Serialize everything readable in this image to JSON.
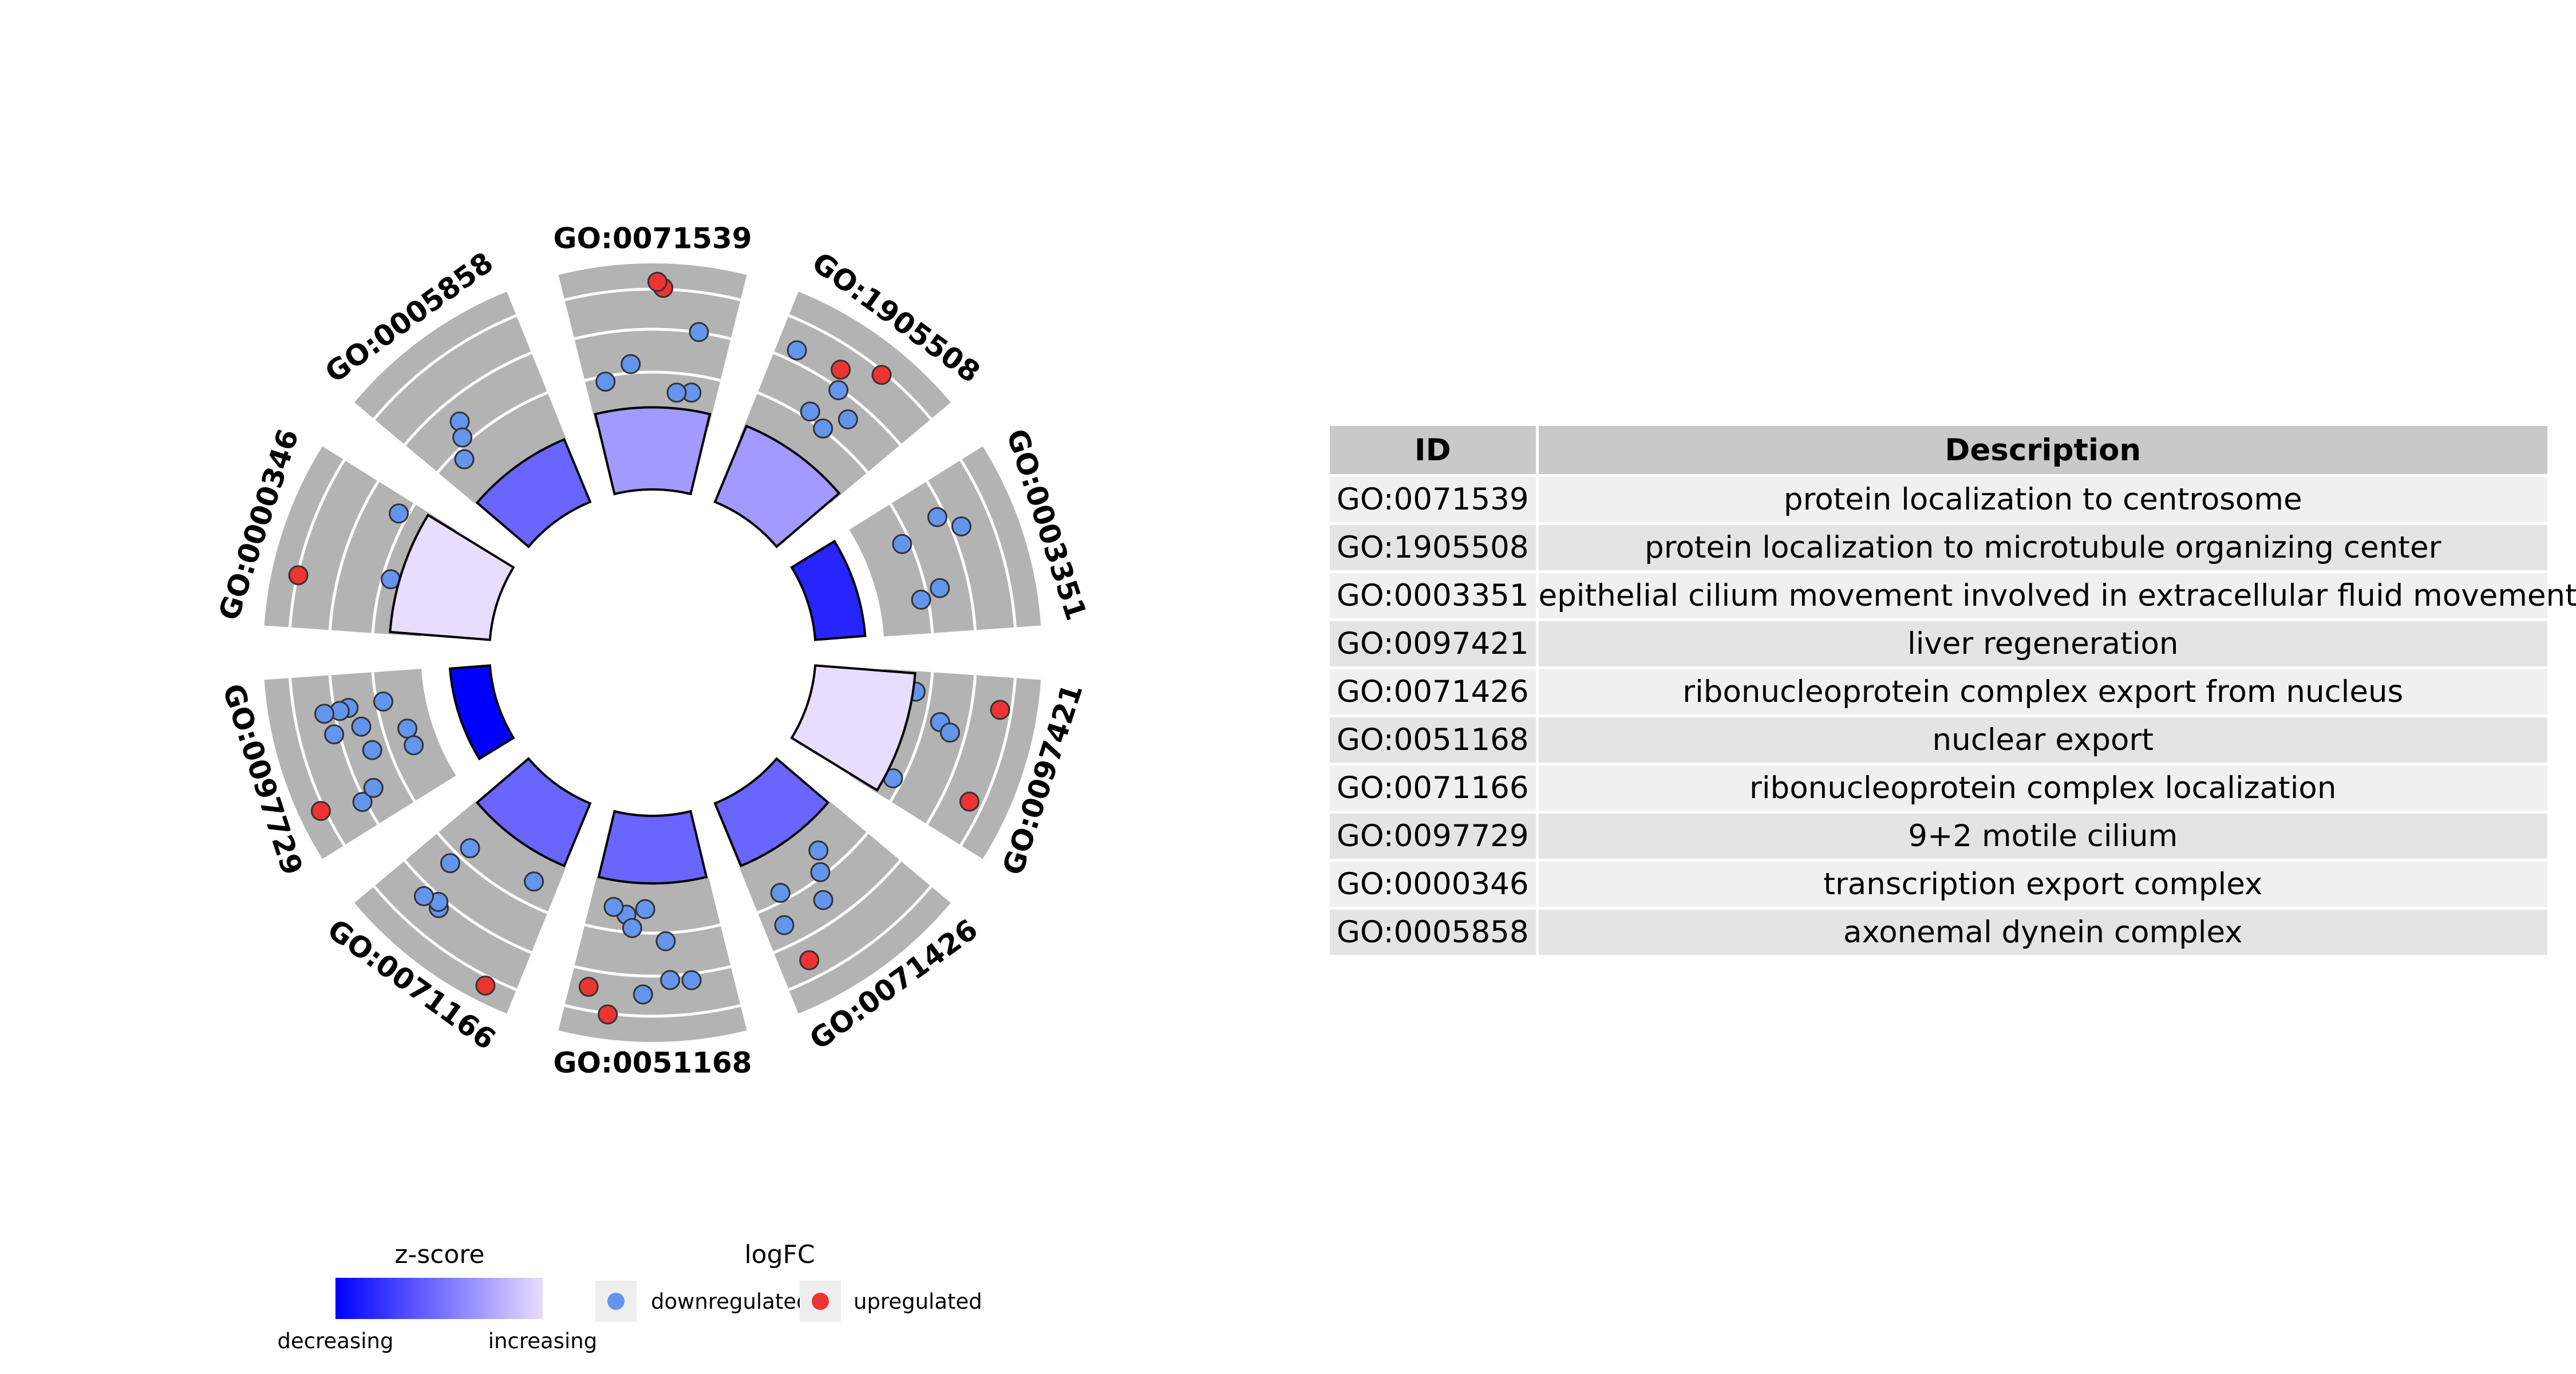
{
  "chart_data": {
    "type": "circular",
    "terms": [
      {
        "id": "GO:0071539",
        "zscore": -0.16,
        "up": 2,
        "down": 5
      },
      {
        "id": "GO:1905508",
        "zscore": -0.16,
        "up": 2,
        "down": 5
      },
      {
        "id": "GO:0003351",
        "zscore": -0.8,
        "up": 0,
        "down": 5
      },
      {
        "id": "GO:0097421",
        "zscore": 0.2,
        "up": 2,
        "down": 4
      },
      {
        "id": "GO:0071426",
        "zscore": -0.45,
        "up": 1,
        "down": 5
      },
      {
        "id": "GO:0051168",
        "zscore": -0.45,
        "up": 2,
        "down": 8
      },
      {
        "id": "GO:0071166",
        "zscore": -0.45,
        "up": 1,
        "down": 6
      },
      {
        "id": "GO:0097729",
        "zscore": -1.0,
        "up": 1,
        "down": 11
      },
      {
        "id": "GO:0000346",
        "zscore": 0.2,
        "up": 1,
        "down": 2
      },
      {
        "id": "GO:0005858",
        "zscore": -0.45,
        "up": 0,
        "down": 3
      }
    ],
    "legend": {
      "zscore_title": "z-score",
      "zscore_low": "decreasing",
      "zscore_high": "increasing",
      "logfc_title": "logFC",
      "down_label": "downregulated",
      "up_label": "upregulated"
    },
    "table": {
      "headers": [
        "ID",
        "Description"
      ],
      "rows": [
        [
          "GO:0071539",
          "protein localization to centrosome"
        ],
        [
          "GO:1905508",
          "protein localization to microtubule organizing center"
        ],
        [
          "GO:0003351",
          "epithelial cilium movement involved in extracellular fluid movement"
        ],
        [
          "GO:0097421",
          "liver regeneration"
        ],
        [
          "GO:0071426",
          "ribonucleoprotein complex export from nucleus"
        ],
        [
          "GO:0051168",
          "nuclear export"
        ],
        [
          "GO:0071166",
          "ribonucleoprotein complex localization"
        ],
        [
          "GO:0097729",
          "9+2 motile cilium"
        ],
        [
          "GO:0000346",
          "transcription export complex"
        ],
        [
          "GO:0005858",
          "axonemal dynein complex"
        ]
      ]
    }
  },
  "colors": {
    "zscore_low": "#0000ff",
    "zscore_high": "#e8dcff",
    "down": "#6495ed",
    "up": "#ee3333",
    "track": "#b3b3b3",
    "table_header": "#c9c9c9"
  }
}
